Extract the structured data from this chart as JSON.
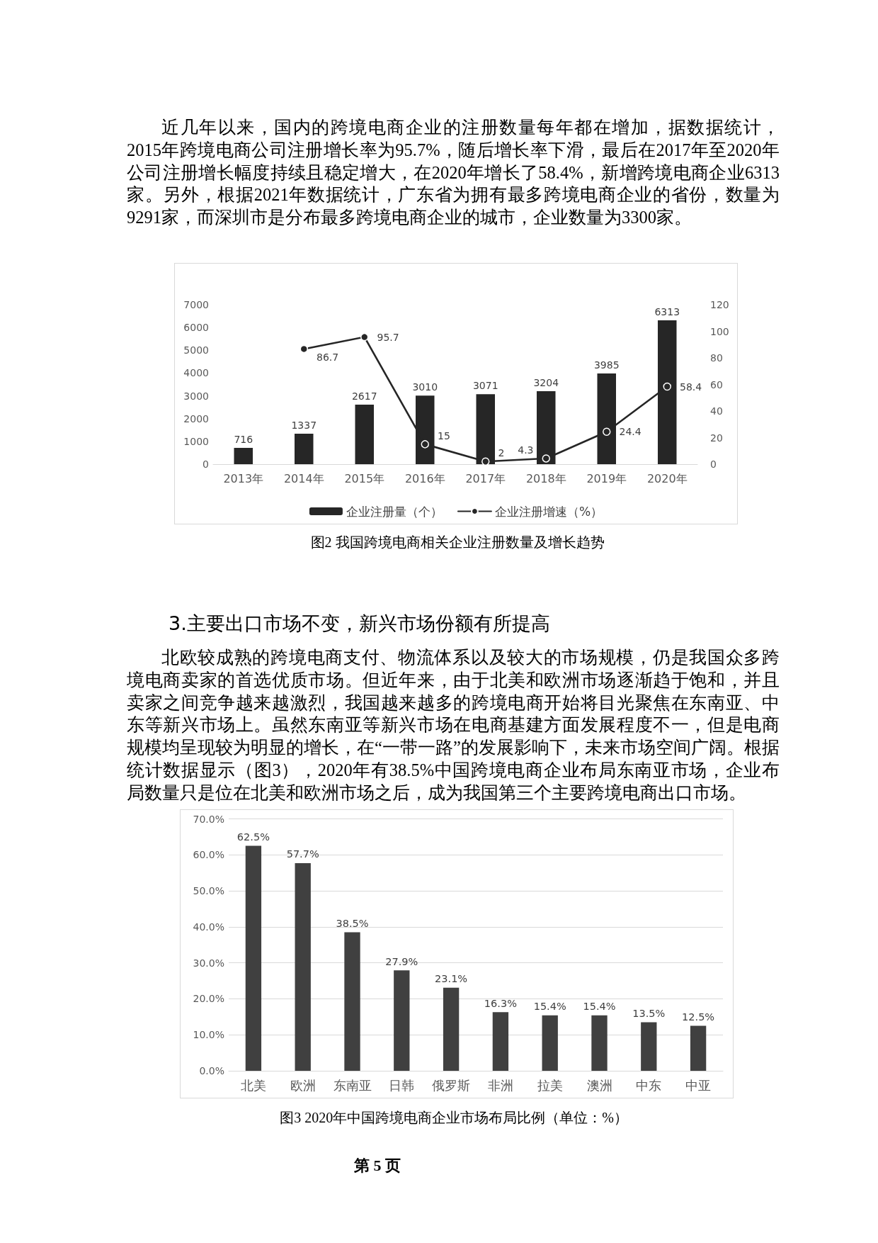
{
  "chart_data": [
    {
      "type": "bar",
      "title": "图2 我国跨境电商相关企业注册数量及增长趋势",
      "annotations": [
        "近几年以来，国内的跨境电商企业的注册数量每年都在增加，据数据统计，2015年跨境电商公司注册增长率为95.7%，随后增长率下滑，最后在2017年至2020年公司注册增长幅度持续且稳定增大，在2020年增长了58.4%，新增跨境电商企业6313家。另外，根据2021年数据统计，广东省为拥有最多跨境电商企业的省份，数量为9291家，而深圳市是分布最多跨境电商企业的城市，企业数量为3300家。"
      ],
      "categories": [
        "2013年",
        "2014年",
        "2015年",
        "2016年",
        "2017年",
        "2018年",
        "2019年",
        "2020年"
      ],
      "series": [
        {
          "name": "企业注册量（个）",
          "color": "#262626",
          "values": [
            716,
            1337,
            2617,
            3010,
            3071,
            3204,
            3985,
            6313
          ]
        },
        {
          "name": "企业注册增速（%）",
          "type": "line",
          "axis": "y2",
          "color": "#262626",
          "values": [
            null,
            86.7,
            95.7,
            15,
            2,
            4.3,
            24.4,
            58.4
          ]
        }
      ],
      "ylim": [
        0,
        7000
      ],
      "yticks": [
        0,
        1000,
        2000,
        3000,
        4000,
        5000,
        6000,
        7000
      ],
      "y2lim": [
        0,
        120
      ],
      "y2ticks": [
        0,
        20,
        40,
        60,
        80,
        100,
        120
      ],
      "data_labels": true,
      "legend": "bottom",
      "marker": "circle"
    },
    {
      "type": "bar",
      "title": "图3 2020年中国跨境电商企业市场布局比例（单位：%）",
      "annotations": [
        "3.主要出口市场不变，新兴市场份额有所提高",
        "北欧较成熟的跨境电商支付、物流体系以及较大的市场规模，仍是我国众多跨境电商卖家的首选优质市场。但近年来，由于北美和欧洲市场逐渐趋于饱和，并且卖家之间竞争越来越激烈，我国越来越多的跨境电商开始将目光聚焦在东南亚、中东等新兴市场上。虽然东南亚等新兴市场在电商基建方面发展程度不一，但是电商规模均呈现较为明显的增长，在“一带一路”的发展影响下，未来市场空间广阔。根据统计数据显示（图3），2020年有38.5%中国跨境电商企业布局东南亚市场，企业布局数量只是位在北美和欧洲市场之后，成为我国第三个主要跨境电商出口市场。",
        "第 5 页"
      ],
      "categories": [
        "北美",
        "欧洲",
        "东南亚",
        "日韩",
        "俄罗斯",
        "非洲",
        "拉美",
        "澳洲",
        "中东",
        "中亚"
      ],
      "values": [
        62.5,
        57.7,
        38.5,
        27.9,
        23.1,
        16.3,
        15.4,
        15.4,
        13.5,
        12.5
      ],
      "color": "#404040",
      "value_labels": [
        "62.5%",
        "57.7%",
        "38.5%",
        "27.9%",
        "23.1%",
        "16.3%",
        "15.4%",
        "15.4%",
        "13.5%",
        "12.5%"
      ],
      "ylim": [
        0,
        70
      ],
      "yticks": [
        {
          "value": 0,
          "label": "0.0%"
        },
        {
          "value": 10,
          "label": "10.0%"
        },
        {
          "value": 20,
          "label": "20.0%"
        },
        {
          "value": 30,
          "label": "30.0%"
        },
        {
          "value": 40,
          "label": "40.0%"
        },
        {
          "value": 50,
          "label": "50.0%"
        },
        {
          "value": 60,
          "label": "60.0%"
        },
        {
          "value": 70,
          "label": "70.0%"
        }
      ],
      "grid": "y"
    }
  ]
}
